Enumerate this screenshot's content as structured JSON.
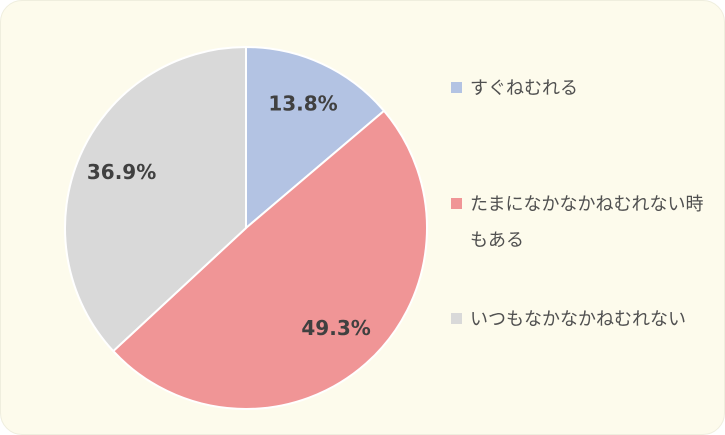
{
  "chart_data": {
    "type": "pie",
    "categories": [
      "すぐねむれる",
      "たまになかなかねむれない時もある",
      "いつもなかなかねむれない"
    ],
    "values": [
      13.8,
      49.3,
      36.9
    ],
    "value_labels": [
      "13.8%",
      "49.3%",
      "36.9%"
    ],
    "colors": [
      "#b3c3e3",
      "#f09596",
      "#d9d9d9"
    ],
    "legend": "right"
  }
}
